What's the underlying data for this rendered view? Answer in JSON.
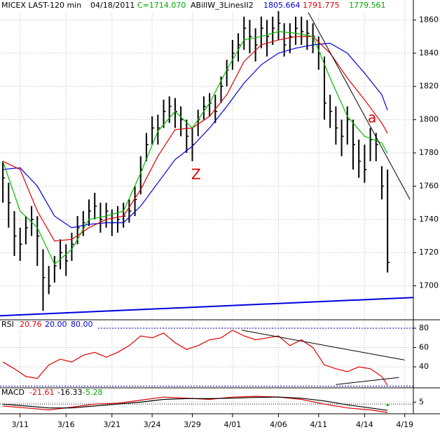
{
  "chart_data": [
    {
      "type": "ohlc",
      "title": "MICEX LAST-120 min",
      "date": "04/18/2011",
      "close_label": "C=1714.070",
      "indicator": "ABillW_3LinesII2",
      "categories": [
        null,
        null,
        null,
        "3/11",
        null,
        null,
        null,
        null,
        null,
        null,
        null,
        "3/16",
        null,
        null,
        null,
        null,
        null,
        null,
        null,
        "3/21",
        null,
        null,
        null,
        null,
        null,
        null,
        "3/24",
        null,
        null,
        null,
        null,
        null,
        null,
        "3/29",
        null,
        null,
        null,
        null,
        null,
        null,
        "4/01",
        null,
        null,
        null,
        null,
        null,
        null,
        null,
        "4/06",
        null,
        null,
        null,
        null,
        null,
        null,
        "4/11",
        null,
        null,
        null,
        null,
        null,
        null,
        null,
        "4/14",
        null,
        null,
        null,
        null,
        null,
        null,
        "4/19"
      ],
      "xlim": [
        -0.5,
        71.5
      ],
      "high": [
        1775,
        1762,
        1745,
        1735,
        1742,
        1748,
        1742,
        1722,
        1712,
        1718,
        1728,
        1725,
        1732,
        1742,
        1745,
        1752,
        1756,
        1750,
        1750,
        1746,
        1748,
        1750,
        1752,
        1760,
        1778,
        1792,
        1802,
        1803,
        1812,
        1814,
        1813,
        1808,
        1800,
        1795,
        1806,
        1814,
        1816,
        1815,
        1826,
        1836,
        1848,
        1852,
        1862,
        1860,
        1855,
        1862,
        1860,
        1862,
        1866,
        1858,
        1858,
        1862,
        1862,
        1860,
        1858,
        1850,
        1838,
        1815,
        1808,
        1800,
        1808,
        1800,
        1788,
        1785,
        1795,
        1792,
        1772,
        1770,
        null,
        null,
        null
      ],
      "low": [
        1750,
        1735,
        1718,
        1715,
        1725,
        1730,
        1712,
        1685,
        1695,
        1702,
        1710,
        1706,
        1715,
        1725,
        1730,
        1736,
        1740,
        1732,
        1735,
        1730,
        1732,
        1735,
        1738,
        1742,
        1755,
        1775,
        1785,
        1785,
        1795,
        1798,
        1795,
        1790,
        1780,
        1775,
        1790,
        1800,
        1802,
        1798,
        1810,
        1820,
        1830,
        1835,
        1842,
        1840,
        1835,
        1843,
        1838,
        1845,
        1848,
        1838,
        1840,
        1845,
        1845,
        1842,
        1840,
        1830,
        1800,
        1795,
        1785,
        1778,
        1785,
        1770,
        1765,
        1762,
        1775,
        1775,
        1752,
        1708,
        null,
        null,
        null
      ],
      "close": [
        1765,
        1750,
        1730,
        1725,
        1735,
        1740,
        1730,
        1705,
        1700,
        1712,
        1720,
        1715,
        1725,
        1735,
        1738,
        1745,
        1748,
        1740,
        1745,
        1738,
        1740,
        1742,
        1745,
        1752,
        1770,
        1785,
        1795,
        1795,
        1805,
        1808,
        1805,
        1800,
        1790,
        1785,
        1800,
        1808,
        1810,
        1805,
        1820,
        1830,
        1840,
        1845,
        1855,
        1850,
        1845,
        1855,
        1850,
        1855,
        1858,
        1845,
        1850,
        1855,
        1853,
        1852,
        1850,
        1840,
        1810,
        1805,
        1795,
        1790,
        1800,
        1785,
        1775,
        1770,
        1788,
        1785,
        1760,
        1714.07,
        null,
        null,
        null
      ],
      "color": "#000000",
      "series": [
        {
          "color": "#0000dd",
          "x": [
            0,
            3,
            6,
            9,
            12,
            15,
            18,
            21,
            24,
            27,
            30,
            33,
            36,
            39,
            42,
            45,
            48,
            51,
            54,
            57,
            60,
            63,
            66,
            67
          ],
          "values": [
            1770,
            1771,
            1760,
            1742,
            1735,
            1737,
            1738,
            1738,
            1748,
            1762,
            1776,
            1784,
            1795,
            1808,
            1822,
            1833,
            1840,
            1843,
            1845,
            1846,
            1840,
            1828,
            1815,
            1805.664
          ]
        },
        {
          "color": "#dd0000",
          "x": [
            0,
            3,
            6,
            9,
            12,
            15,
            18,
            21,
            24,
            27,
            30,
            33,
            36,
            39,
            42,
            45,
            48,
            51,
            54,
            57,
            60,
            63,
            66,
            67
          ],
          "values": [
            1775,
            1770,
            1745,
            1727,
            1728,
            1735,
            1740,
            1742,
            1758,
            1778,
            1794,
            1795,
            1802,
            1815,
            1835,
            1845,
            1848,
            1850,
            1850,
            1840,
            1825,
            1812,
            1798,
            1791.775
          ]
        },
        {
          "color": "#00bb00",
          "x": [
            0,
            3,
            6,
            9,
            12,
            15,
            18,
            21,
            24,
            27,
            30,
            33,
            36,
            39,
            42,
            45,
            48,
            51,
            54,
            57,
            60,
            63,
            66,
            67
          ],
          "values": [
            1775,
            1745,
            1735,
            1713,
            1722,
            1740,
            1742,
            1745,
            1768,
            1793,
            1805,
            1795,
            1810,
            1830,
            1848,
            1850,
            1853,
            1852,
            1850,
            1825,
            1802,
            1790,
            1786,
            1779.561
          ]
        }
      ],
      "trendlines": [
        {
          "color": "#0000dd",
          "x": [
            -0.5,
            71.5
          ],
          "values": [
            1682,
            1693
          ]
        },
        {
          "color": "#000000",
          "x": [
            53.2,
            70.9
          ],
          "values": [
            1864.6,
            1752
          ]
        }
      ],
      "annotations": [
        "a",
        "Z"
      ],
      "ylim": [
        1680,
        1872
      ],
      "yticks": [
        1700,
        1720,
        1740,
        1760,
        1780,
        1800,
        1820,
        1840,
        1860
      ],
      "grid": true
    },
    {
      "type": "line",
      "title": "RSI",
      "xlim": [
        -0.5,
        71.5
      ],
      "series": [
        {
          "color": "#dd0000",
          "x": [
            0,
            2,
            4,
            6,
            8,
            10,
            12,
            14,
            16,
            18,
            20,
            22,
            24,
            26,
            28,
            30,
            32,
            34,
            36,
            38,
            40,
            42,
            44,
            46,
            48,
            50,
            52,
            54,
            56,
            58,
            60,
            62,
            64,
            66,
            67
          ],
          "values": [
            45,
            38,
            30,
            28,
            42,
            48,
            45,
            52,
            55,
            50,
            55,
            62,
            72,
            70,
            75,
            65,
            58,
            62,
            68,
            70,
            78,
            72,
            68,
            70,
            72,
            62,
            68,
            60,
            42,
            38,
            35,
            40,
            38,
            30,
            20.76
          ]
        }
      ],
      "levels": [
        {
          "value": 20,
          "label": "20.00",
          "color": "#0000cc"
        },
        {
          "value": 80,
          "label": "80.00",
          "color": "#0000cc"
        }
      ],
      "trendlines": [
        {
          "color": "#000000",
          "x": [
            41.6,
            70
          ],
          "values": [
            78,
            47
          ]
        },
        {
          "color": "#000000",
          "x": [
            58,
            69
          ],
          "values": [
            21.6,
            29
          ]
        }
      ],
      "ylim": [
        19,
        88
      ],
      "yticks": [
        40,
        60,
        80
      ]
    },
    {
      "type": "line",
      "title": "MACD",
      "xlim": [
        -0.5,
        71.5
      ],
      "series": [
        {
          "color": "#dd0000",
          "x": [
            0,
            4,
            8,
            12,
            16,
            20,
            24,
            28,
            32,
            36,
            40,
            44,
            48,
            52,
            56,
            60,
            64,
            67
          ],
          "values": [
            -5,
            -10,
            -15,
            -8,
            0,
            2,
            10,
            18,
            15,
            12,
            18,
            20,
            18,
            12,
            0,
            -10,
            -15,
            -21.61
          ]
        },
        {
          "color": "#000000",
          "x": [
            0,
            4,
            8,
            12,
            16,
            20,
            24,
            28,
            32,
            36,
            40,
            44,
            48,
            52,
            56,
            60,
            64,
            67
          ],
          "values": [
            0,
            -5,
            -10,
            -10,
            -5,
            0,
            5,
            12,
            14,
            14,
            15,
            17,
            18,
            15,
            8,
            -2,
            -10,
            -16.33
          ]
        }
      ],
      "histogram": {
        "color": "#00aa00",
        "x": [
          67
        ],
        "values": [
          -5.28
        ]
      },
      "ylim": [
        -25,
        40
      ],
      "yticks": [
        5
      ]
    }
  ]
}
